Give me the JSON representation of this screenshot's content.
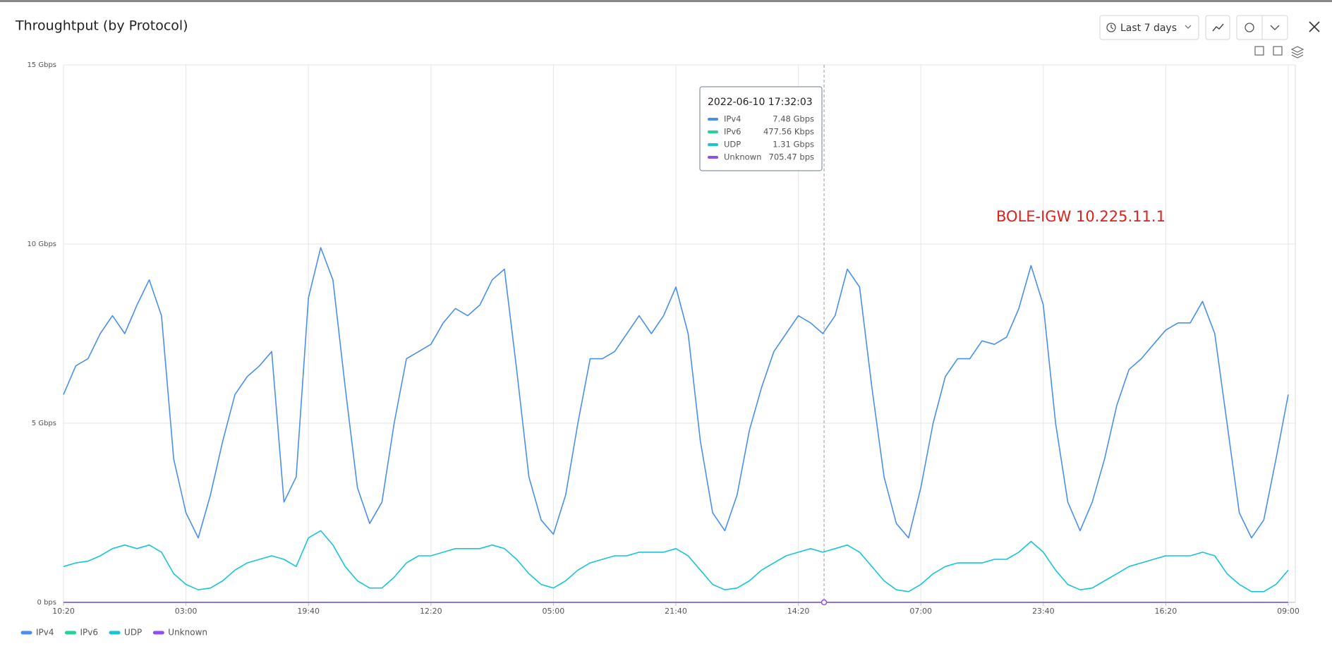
{
  "header": {
    "title": "Throughtput (by Protocol)",
    "range_button": "Last 7 days"
  },
  "chart_data": {
    "type": "line",
    "categories": [
      "10:20",
      null,
      null,
      null,
      null,
      null,
      null,
      null,
      null,
      null,
      "03:00",
      null,
      null,
      null,
      null,
      null,
      null,
      null,
      null,
      null,
      "19:40",
      null,
      null,
      null,
      null,
      null,
      null,
      null,
      null,
      null,
      "12:20",
      null,
      null,
      null,
      null,
      null,
      null,
      null,
      null,
      null,
      "05:00",
      null,
      null,
      null,
      null,
      null,
      null,
      null,
      null,
      null,
      "21:40",
      null,
      null,
      null,
      null,
      null,
      null,
      null,
      null,
      null,
      "14:20",
      null,
      null,
      null,
      null,
      null,
      null,
      null,
      null,
      null,
      "07:00",
      null,
      null,
      null,
      null,
      null,
      null,
      null,
      null,
      null,
      "23:40",
      null,
      null,
      null,
      null,
      null,
      null,
      null,
      null,
      null,
      "16:20",
      null,
      null,
      null,
      null,
      null,
      null,
      null,
      null,
      null,
      "09:00"
    ],
    "series": [
      {
        "name": "IPv4",
        "color": "#4a8ff0",
        "values": [
          5.8,
          6.6,
          6.8,
          7.5,
          8.0,
          7.5,
          8.3,
          9.0,
          8.0,
          4.0,
          2.5,
          1.8,
          3.0,
          4.5,
          5.8,
          6.3,
          6.6,
          7.0,
          2.8,
          3.5,
          8.5,
          9.9,
          9.0,
          6.0,
          3.2,
          2.2,
          2.8,
          5.0,
          6.8,
          7.0,
          7.2,
          7.8,
          8.2,
          8.0,
          8.3,
          9.0,
          9.3,
          6.5,
          3.5,
          2.3,
          1.9,
          3.0,
          5.0,
          6.8,
          6.8,
          7.0,
          7.5,
          8.0,
          7.5,
          8.0,
          8.8,
          7.5,
          4.5,
          2.5,
          2.0,
          3.0,
          4.8,
          6.0,
          7.0,
          7.5,
          8.0,
          7.8,
          7.5,
          8.0,
          9.3,
          8.8,
          6.0,
          3.5,
          2.2,
          1.8,
          3.2,
          5.0,
          6.3,
          6.8,
          6.8,
          7.3,
          7.2,
          7.4,
          8.2,
          9.4,
          8.3,
          5.0,
          2.8,
          2.0,
          2.8,
          4.0,
          5.5,
          6.5,
          6.8,
          7.2,
          7.6,
          7.8,
          7.8,
          8.4,
          7.5,
          5.0,
          2.5,
          1.8,
          2.3,
          4.0,
          5.8
        ]
      },
      {
        "name": "IPv6",
        "color": "#1fd39a",
        "values": [
          0,
          0,
          0,
          0,
          0,
          0,
          0,
          0,
          0,
          0,
          0,
          0,
          0,
          0,
          0,
          0,
          0,
          0,
          0,
          0,
          0,
          0,
          0,
          0,
          0,
          0,
          0,
          0,
          0,
          0,
          0,
          0,
          0,
          0,
          0,
          0,
          0,
          0,
          0,
          0,
          0,
          0,
          0,
          0,
          0,
          0,
          0,
          0,
          0,
          0,
          0,
          0,
          0,
          0,
          0,
          0,
          0,
          0,
          0,
          0,
          0,
          0,
          0,
          0,
          0,
          0,
          0,
          0,
          0,
          0,
          0,
          0,
          0,
          0,
          0,
          0,
          0,
          0,
          0,
          0,
          0,
          0,
          0,
          0,
          0,
          0,
          0,
          0,
          0,
          0,
          0,
          0,
          0,
          0,
          0,
          0,
          0,
          0,
          0,
          0,
          0
        ]
      },
      {
        "name": "UDP",
        "color": "#17c6d6",
        "values": [
          1.0,
          1.1,
          1.15,
          1.3,
          1.5,
          1.6,
          1.5,
          1.6,
          1.4,
          0.8,
          0.5,
          0.35,
          0.4,
          0.6,
          0.9,
          1.1,
          1.2,
          1.3,
          1.2,
          1.0,
          1.8,
          2.0,
          1.6,
          1.0,
          0.6,
          0.4,
          0.4,
          0.7,
          1.1,
          1.3,
          1.3,
          1.4,
          1.5,
          1.5,
          1.5,
          1.6,
          1.5,
          1.2,
          0.8,
          0.5,
          0.4,
          0.6,
          0.9,
          1.1,
          1.2,
          1.3,
          1.3,
          1.4,
          1.4,
          1.4,
          1.5,
          1.3,
          0.9,
          0.5,
          0.35,
          0.4,
          0.6,
          0.9,
          1.1,
          1.3,
          1.4,
          1.5,
          1.4,
          1.5,
          1.6,
          1.4,
          1.0,
          0.6,
          0.35,
          0.3,
          0.5,
          0.8,
          1.0,
          1.1,
          1.1,
          1.1,
          1.2,
          1.2,
          1.4,
          1.7,
          1.4,
          0.9,
          0.5,
          0.35,
          0.4,
          0.6,
          0.8,
          1.0,
          1.1,
          1.2,
          1.3,
          1.3,
          1.3,
          1.4,
          1.3,
          0.8,
          0.5,
          0.3,
          0.3,
          0.5,
          0.9
        ]
      },
      {
        "name": "Unknown",
        "color": "#8e4ff0",
        "values": [
          0,
          0,
          0,
          0,
          0,
          0,
          0,
          0,
          0,
          0,
          0,
          0,
          0,
          0,
          0,
          0,
          0,
          0,
          0,
          0,
          0,
          0,
          0,
          0,
          0,
          0,
          0,
          0,
          0,
          0,
          0,
          0,
          0,
          0,
          0,
          0,
          0,
          0,
          0,
          0,
          0,
          0,
          0,
          0,
          0,
          0,
          0,
          0,
          0,
          0,
          0,
          0,
          0,
          0,
          0,
          0,
          0,
          0,
          0,
          0,
          0,
          0,
          0,
          0,
          0,
          0,
          0,
          0,
          0,
          0,
          0,
          0,
          0,
          0,
          0,
          0,
          0,
          0,
          0,
          0,
          0,
          0,
          0,
          0,
          0,
          0,
          0,
          0,
          0,
          0,
          0,
          0,
          0,
          0,
          0,
          0,
          0,
          0,
          0,
          0,
          0
        ]
      }
    ],
    "ylim": [
      0,
      15
    ],
    "yticks": [
      {
        "value": 0,
        "label": "0 bps"
      },
      {
        "value": 5,
        "label": "5 Gbps"
      },
      {
        "value": 10,
        "label": "10 Gbps"
      },
      {
        "value": 15,
        "label": "15 Gbps"
      }
    ],
    "grid": true,
    "annotation": "BOLE-IGW 10.225.11.1",
    "tooltip": {
      "title": "2022-06-10 17:32:03",
      "value_labels": [
        "7.48 Gbps",
        "477.56 Kbps",
        "1.31 Gbps",
        "705.47 bps"
      ]
    }
  }
}
